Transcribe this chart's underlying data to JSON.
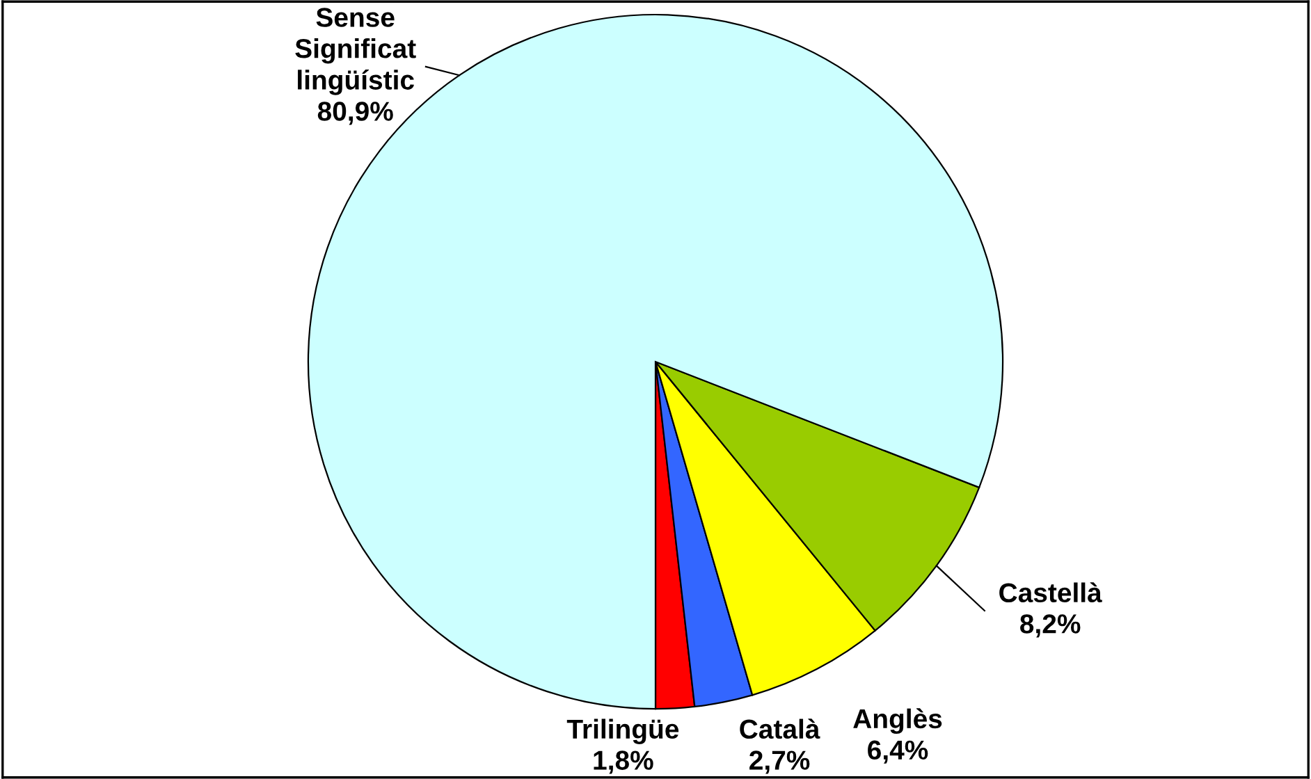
{
  "chart_data": {
    "type": "pie",
    "categories": [
      "Trilingüe",
      "Català",
      "Anglès",
      "Castellà",
      "Sense Significat lingüístic"
    ],
    "values": [
      1.8,
      2.7,
      6.4,
      8.2,
      80.9
    ],
    "value_labels": [
      "1,8%",
      "2,7%",
      "6,4%",
      "8,2%",
      "80,9%"
    ],
    "colors": [
      "#ff0000",
      "#3366ff",
      "#ffff00",
      "#99cc00",
      "#ccffff"
    ],
    "legend": false
  }
}
